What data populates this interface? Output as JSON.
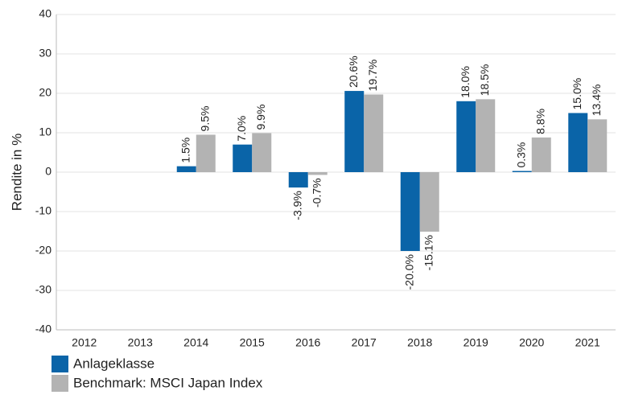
{
  "chart_data": {
    "type": "bar",
    "y_label": "Rendite in %",
    "categories": [
      "2012",
      "2013",
      "2014",
      "2015",
      "2016",
      "2017",
      "2018",
      "2019",
      "2020",
      "2021"
    ],
    "series": [
      {
        "name": "Anlageklasse",
        "color": "#0a64a8",
        "values": [
          null,
          null,
          1.5,
          7.0,
          -3.9,
          20.6,
          -20.0,
          18.0,
          0.3,
          15.0
        ],
        "value_labels": [
          null,
          null,
          "1.5%",
          "7.0%",
          "-3.9%",
          "20.6%",
          "-20.0%",
          "18.0%",
          "0.3%",
          "15.0%"
        ]
      },
      {
        "name": "Benchmark: MSCI Japan Index",
        "color": "#b3b3b3",
        "values": [
          null,
          null,
          9.5,
          9.9,
          -0.7,
          19.7,
          -15.1,
          18.5,
          8.8,
          13.4
        ],
        "value_labels": [
          null,
          null,
          "9.5%",
          "9.9%",
          "-0.7%",
          "19.7%",
          "-15.1%",
          "18.5%",
          "8.8%",
          "13.4%"
        ]
      }
    ],
    "ylim": [
      -40,
      40
    ],
    "yticks": [
      -40,
      -30,
      -20,
      -10,
      0,
      10,
      20,
      30,
      40
    ],
    "grid": true
  }
}
